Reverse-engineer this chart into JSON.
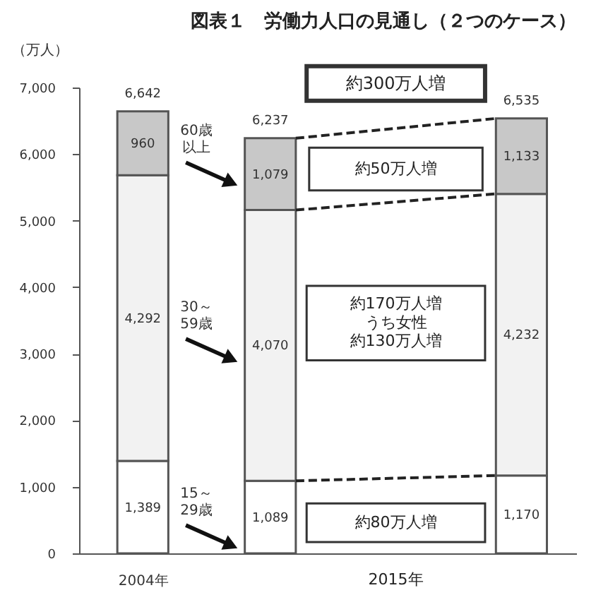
{
  "chart_data": {
    "type": "bar",
    "title": "図表１　労働力人口の見通し（２つのケース）",
    "ylabel": "（万人）",
    "categories": [
      "2004年",
      null,
      null
    ],
    "stacked": true,
    "series": [
      {
        "name": "15～29歳",
        "color": "#ffffff",
        "values": [
          1389,
          1089,
          1170
        ],
        "value_labels": [
          "1,389",
          "1,089",
          "1,170"
        ]
      },
      {
        "name": "30～59歳",
        "color": "#f2f2f2",
        "values": [
          4292,
          4070,
          4232
        ],
        "value_labels": [
          "4,292",
          "4,070",
          "4,232"
        ]
      },
      {
        "name": "60歳以上",
        "color": "#c8c8c8",
        "values": [
          960,
          1079,
          1133
        ],
        "value_labels": [
          "960",
          "1,079",
          "1,133"
        ]
      }
    ],
    "totals": [
      "6,642",
      "6,237",
      "6,535"
    ],
    "ylim": [
      0,
      7000
    ],
    "yticks": [
      0,
      {
        "value": 1000,
        "label": "1,000"
      },
      {
        "value": 2000,
        "label": "2,000"
      },
      {
        "value": 3000,
        "label": "3,000"
      },
      {
        "value": 4000,
        "label": "4,000"
      },
      {
        "value": 5000,
        "label": "5,000"
      },
      {
        "value": 6000,
        "label": "6,000"
      },
      {
        "value": 7000,
        "label": "7,000"
      }
    ],
    "grid": false,
    "annotations": [
      "約300万人増",
      "約50万人増",
      "約170万人増",
      "うち女性",
      "約130万人増",
      "約80万人増",
      "2015年"
    ]
  }
}
